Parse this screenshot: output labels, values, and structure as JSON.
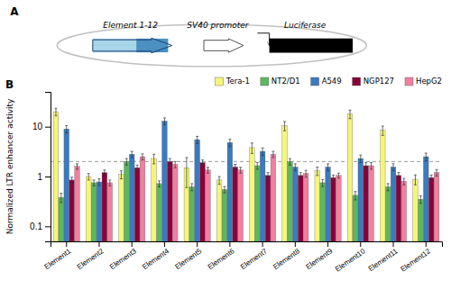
{
  "chart_data": {
    "type": "bar",
    "ylabel": "Normalized LTR enhancer activity",
    "annotations": [
      "A",
      "B",
      "Element 1-12",
      "SV40 promoter",
      "Luciferase"
    ],
    "categories": [
      "Element1",
      "Element2",
      "Element3",
      "Element4",
      "Element5",
      "Element6",
      "Element7",
      "Element8",
      "Element9",
      "Element10",
      "Element11",
      "Element12"
    ],
    "series": [
      {
        "name": "Tera-1",
        "color": "#f5f57a",
        "values": [
          20.0,
          1.0,
          1.1,
          2.3,
          1.5,
          0.85,
          3.8,
          10.5,
          1.3,
          18.0,
          8.5,
          0.88
        ],
        "errors": [
          3.5,
          0.15,
          0.2,
          0.5,
          0.9,
          0.15,
          0.9,
          2.2,
          0.25,
          3.5,
          1.8,
          0.2
        ]
      },
      {
        "name": "NT2/D1",
        "color": "#5db85c",
        "values": [
          0.38,
          0.75,
          2.0,
          0.72,
          0.62,
          0.55,
          1.65,
          2.0,
          0.75,
          0.42,
          0.62,
          0.35
        ],
        "errors": [
          0.08,
          0.1,
          0.3,
          0.1,
          0.1,
          0.08,
          0.25,
          0.3,
          0.12,
          0.08,
          0.1,
          0.06
        ]
      },
      {
        "name": "A549",
        "color": "#3a7abf",
        "values": [
          9.0,
          0.78,
          2.8,
          13.0,
          5.5,
          4.8,
          3.2,
          1.55,
          1.55,
          2.3,
          1.55,
          2.5
        ],
        "errors": [
          1.5,
          0.12,
          0.4,
          2.0,
          0.9,
          0.8,
          0.55,
          0.25,
          0.25,
          0.4,
          0.25,
          0.45
        ]
      },
      {
        "name": "NGP127",
        "color": "#8b0038",
        "values": [
          0.85,
          1.2,
          1.5,
          2.0,
          1.9,
          1.55,
          1.05,
          1.05,
          0.95,
          1.65,
          1.05,
          0.95
        ],
        "errors": [
          0.12,
          0.15,
          0.2,
          0.3,
          0.25,
          0.2,
          0.15,
          0.15,
          0.12,
          0.25,
          0.15,
          0.12
        ]
      },
      {
        "name": "HepG2",
        "color": "#f080a0",
        "values": [
          1.6,
          0.75,
          2.5,
          1.75,
          1.35,
          1.35,
          2.8,
          1.15,
          1.05,
          1.65,
          0.8,
          1.2
        ],
        "errors": [
          0.2,
          0.1,
          0.35,
          0.25,
          0.18,
          0.18,
          0.4,
          0.18,
          0.12,
          0.25,
          0.12,
          0.18
        ]
      }
    ],
    "reference_line": 2,
    "ylim": [
      0.05,
      50
    ],
    "yticks": [
      0.1,
      1,
      10
    ],
    "log": "y",
    "grid": false,
    "legend": "upper right"
  }
}
